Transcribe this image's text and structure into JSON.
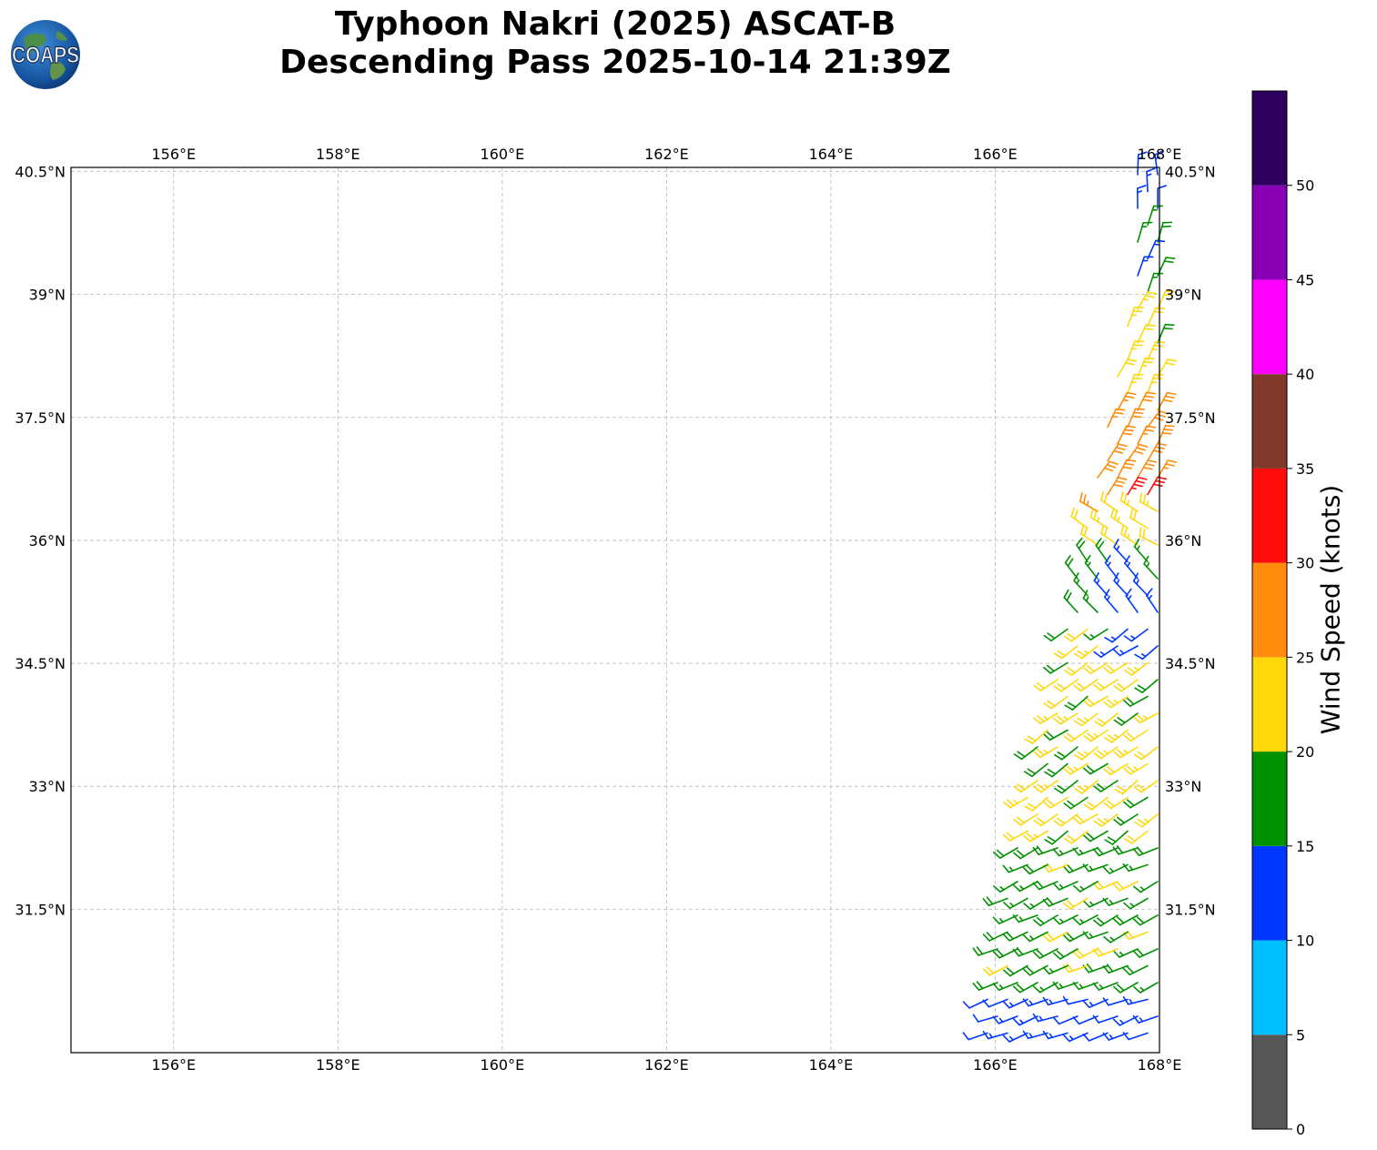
{
  "title_line1": "Typhoon Nakri (2025) ASCAT-B",
  "title_line2": "Descending Pass 2025-10-14 21:39Z",
  "logo_text": "COAPS",
  "map": {
    "lon_range": [
      154.75,
      168.0
    ],
    "lat_range": [
      29.75,
      40.55
    ],
    "lon_ticks": [
      156,
      158,
      160,
      162,
      164,
      166,
      168
    ],
    "lon_tick_labels": [
      "156°E",
      "158°E",
      "160°E",
      "162°E",
      "164°E",
      "166°E",
      "168°E"
    ],
    "lat_ticks": [
      31.5,
      33,
      34.5,
      36,
      37.5,
      39,
      40.5
    ],
    "lat_tick_labels": [
      "31.5°N",
      "33°N",
      "34.5°N",
      "36°N",
      "37.5°N",
      "39°N",
      "40.5°N"
    ],
    "grid": "dashed"
  },
  "colorbar": {
    "label": "Wind Speed (knots)",
    "ticks": [
      0,
      5,
      10,
      15,
      20,
      25,
      30,
      35,
      40,
      45,
      50
    ],
    "tick_labels": [
      "0",
      "5",
      "10",
      "15",
      "20",
      "25",
      "30",
      "35",
      "40",
      "45",
      "50"
    ],
    "bins": [
      {
        "min": 0,
        "max": 5,
        "color": "#575757"
      },
      {
        "min": 5,
        "max": 10,
        "color": "#00bfff"
      },
      {
        "min": 10,
        "max": 15,
        "color": "#0037ff"
      },
      {
        "min": 15,
        "max": 20,
        "color": "#009100"
      },
      {
        "min": 20,
        "max": 25,
        "color": "#ffd80c"
      },
      {
        "min": 25,
        "max": 30,
        "color": "#ff8c0c"
      },
      {
        "min": 30,
        "max": 35,
        "color": "#ff0c0c"
      },
      {
        "min": 35,
        "max": 40,
        "color": "#80392b"
      },
      {
        "min": 40,
        "max": 45,
        "color": "#ff00ff"
      },
      {
        "min": 45,
        "max": 50,
        "color": "#8800b5"
      },
      {
        "min": 50,
        "max": 55,
        "color": "#2e005e"
      }
    ]
  },
  "chart_data": {
    "type": "wind-barbs",
    "swath_regions": [
      {
        "lat_min": 39.95,
        "lat_max": 40.55,
        "speed_kt": 12,
        "dir_from_deg": 355
      },
      {
        "lat_min": 38.9,
        "lat_max": 39.95,
        "speed_kt": 16,
        "dir_from_deg": 20
      },
      {
        "lat_min": 37.6,
        "lat_max": 38.9,
        "speed_kt": 22,
        "dir_from_deg": 25
      },
      {
        "lat_min": 36.7,
        "lat_max": 37.6,
        "speed_kt": 28,
        "dir_from_deg": 30
      },
      {
        "lat_min": 36.4,
        "lat_max": 36.9,
        "speed_kt": 32,
        "dir_from_deg": 30
      },
      {
        "lat_min": 35.75,
        "lat_max": 36.4,
        "speed_kt": 23,
        "dir_from_deg": 300
      },
      {
        "lat_min": 35.0,
        "lat_max": 35.75,
        "speed_kt": 17,
        "dir_from_deg": 320
      },
      {
        "lat_min": 32.3,
        "lat_max": 35.0,
        "speed_kt": 21,
        "dir_from_deg": 235
      },
      {
        "lat_min": 30.5,
        "lat_max": 32.3,
        "speed_kt": 18,
        "dir_from_deg": 245
      },
      {
        "lat_min": 29.75,
        "lat_max": 30.5,
        "speed_kt": 13,
        "dir_from_deg": 250
      }
    ]
  }
}
